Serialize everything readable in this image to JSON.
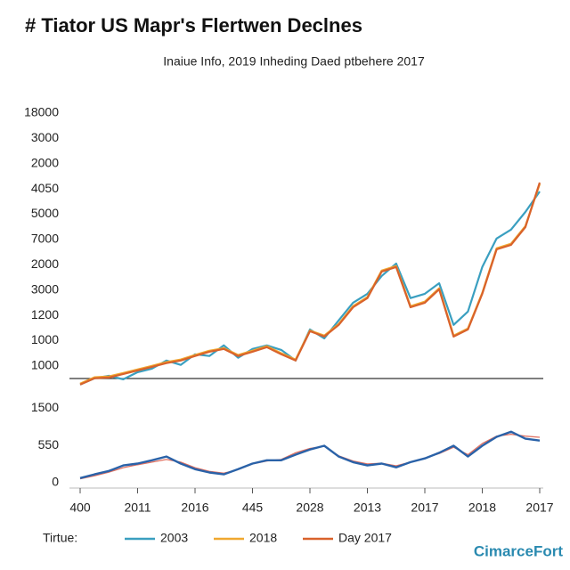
{
  "chart_data": [
    {
      "type": "line",
      "title": "# Tiator US Mapr's Flertwen Declnes",
      "subtitle": "Inaiue Info, 2019 Inheding Daed ptbehere 2017",
      "x": [
        0,
        0.25,
        0.5,
        0.75,
        1,
        1.25,
        1.5,
        1.75,
        2,
        2.25,
        2.5,
        2.75,
        3,
        3.25,
        3.5,
        3.75,
        4,
        4.25,
        4.5,
        4.75,
        5,
        5.25,
        5.5,
        5.75,
        6,
        6.25,
        6.5,
        6.75,
        7,
        7.25,
        7.5,
        7.75,
        8
      ],
      "xlim": [
        0,
        8
      ],
      "ylim": [
        0.5,
        11
      ],
      "yticks": [
        {
          "value": 1,
          "label": "1000"
        },
        {
          "value": 2,
          "label": "1000"
        },
        {
          "value": 3,
          "label": "1200"
        },
        {
          "value": 4,
          "label": "3000"
        },
        {
          "value": 5,
          "label": "2000"
        },
        {
          "value": 6,
          "label": "7000"
        },
        {
          "value": 7,
          "label": "5000"
        },
        {
          "value": 8,
          "label": "4050"
        },
        {
          "value": 9,
          "label": "2000"
        },
        {
          "value": 10,
          "label": "3000"
        },
        {
          "value": 11,
          "label": "18000"
        }
      ],
      "legend_title": "Tirtue:",
      "legend": "bottom",
      "series": [
        {
          "name": "2003",
          "color": "#3a9fc0",
          "values": [
            0.26,
            0.51,
            0.61,
            0.47,
            0.75,
            0.89,
            1.21,
            1.04,
            1.46,
            1.39,
            1.81,
            1.32,
            1.67,
            1.81,
            1.63,
            1.21,
            2.44,
            2.09,
            2.8,
            3.5,
            3.85,
            4.56,
            5.05,
            3.68,
            3.85,
            4.27,
            2.62,
            3.15,
            4.91,
            6.04,
            6.39,
            7.09,
            7.9
          ]
        },
        {
          "name": "2018",
          "color": "#f0a830",
          "values": [
            0.3,
            0.55,
            0.58,
            0.72,
            0.86,
            1.0,
            1.15,
            1.25,
            1.43,
            1.6,
            1.7,
            1.43,
            1.6,
            1.78,
            1.5,
            1.25,
            2.4,
            2.2,
            2.66,
            3.36,
            3.72,
            4.77,
            4.95,
            3.36,
            3.54,
            4.07,
            2.2,
            2.48,
            3.89,
            5.65,
            5.83,
            6.53,
            8.2
          ]
        },
        {
          "name": "Day 2017",
          "color": "#d9622b",
          "values": [
            0.26,
            0.51,
            0.54,
            0.68,
            0.82,
            0.96,
            1.11,
            1.21,
            1.39,
            1.56,
            1.67,
            1.39,
            1.56,
            1.74,
            1.46,
            1.21,
            2.37,
            2.16,
            2.62,
            3.32,
            3.68,
            4.73,
            4.91,
            3.32,
            3.5,
            4.03,
            2.16,
            2.44,
            3.85,
            5.61,
            5.79,
            6.49,
            8.25
          ]
        }
      ]
    },
    {
      "type": "line",
      "x": [
        0,
        0.25,
        0.5,
        0.75,
        1,
        1.25,
        1.5,
        1.75,
        2,
        2.25,
        2.5,
        2.75,
        3,
        3.25,
        3.5,
        3.75,
        4,
        4.25,
        4.5,
        4.75,
        5,
        5.25,
        5.5,
        5.75,
        6,
        6.25,
        6.5,
        6.75,
        7,
        7.25,
        7.5,
        7.75,
        8
      ],
      "xlim": [
        0,
        8
      ],
      "xticks": [
        {
          "value": 0,
          "label": "400"
        },
        {
          "value": 1,
          "label": "2011"
        },
        {
          "value": 2,
          "label": "2016"
        },
        {
          "value": 3,
          "label": "445"
        },
        {
          "value": 4,
          "label": "2028"
        },
        {
          "value": 5,
          "label": "2013"
        },
        {
          "value": 6,
          "label": "2017"
        },
        {
          "value": 7,
          "label": "2018"
        },
        {
          "value": 8,
          "label": "2017"
        }
      ],
      "ylim": [
        -0.15,
        2.3
      ],
      "yticks": [
        0,
        {
          "value": 1,
          "label": "550"
        },
        {
          "value": 2,
          "label": "1500"
        }
      ],
      "series": [
        {
          "color": "#e07060",
          "values": [
            0.1,
            0.18,
            0.28,
            0.4,
            0.48,
            0.55,
            0.62,
            0.55,
            0.4,
            0.3,
            0.25,
            0.35,
            0.5,
            0.58,
            0.62,
            0.8,
            0.92,
            0.98,
            0.72,
            0.58,
            0.5,
            0.52,
            0.45,
            0.55,
            0.66,
            0.78,
            0.95,
            0.75,
            1.05,
            1.25,
            1.3,
            1.25,
            1.22
          ]
        },
        {
          "color": "#2a62a8",
          "values": [
            0.12,
            0.22,
            0.31,
            0.46,
            0.51,
            0.6,
            0.7,
            0.51,
            0.36,
            0.27,
            0.22,
            0.36,
            0.51,
            0.6,
            0.6,
            0.75,
            0.89,
            0.99,
            0.7,
            0.55,
            0.46,
            0.51,
            0.41,
            0.55,
            0.65,
            0.8,
            0.99,
            0.7,
            0.99,
            1.23,
            1.37,
            1.18,
            1.13
          ]
        }
      ]
    }
  ],
  "watermark": "CimarceFort"
}
